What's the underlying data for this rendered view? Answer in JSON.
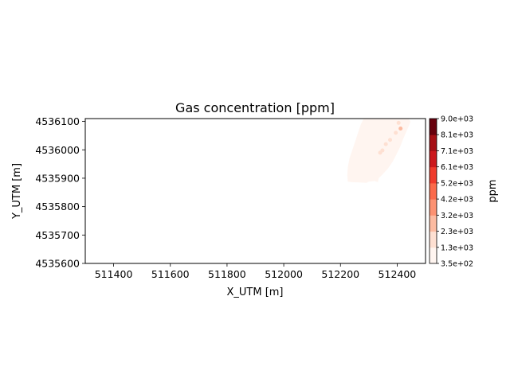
{
  "chart_data": {
    "type": "heatmap",
    "title": "Gas concentration [ppm]",
    "xlabel": "X_UTM [m]",
    "ylabel": "Y_UTM [m]",
    "xlim": [
      511300,
      512500
    ],
    "ylim": [
      4535600,
      4536110
    ],
    "x_ticks": [
      511400,
      511600,
      511800,
      512000,
      512200,
      512400
    ],
    "y_ticks": [
      4535600,
      4535700,
      4535800,
      4535900,
      4536000,
      4536100
    ],
    "grid": false,
    "colorbar": {
      "label": "ppm",
      "range": [
        350,
        9000
      ],
      "tick_labels": [
        "3.5e+02",
        "1.3e+03",
        "2.3e+03",
        "3.2e+03",
        "4.2e+03",
        "5.2e+03",
        "6.1e+03",
        "7.1e+03",
        "8.1e+03",
        "9.0e+03"
      ],
      "tick_values": [
        350,
        1300,
        2300,
        3200,
        4200,
        5200,
        6100,
        7100,
        8100,
        9000
      ],
      "colors": [
        "#fff5f0",
        "#fee0d2",
        "#fcbba1",
        "#fc9272",
        "#fb6a4a",
        "#ef3b2c",
        "#cb181d",
        "#a50f15",
        "#67000d"
      ]
    },
    "plume_outline": [
      [
        512226,
        4535888
      ],
      [
        512240,
        4535886
      ],
      [
        512268,
        4535885
      ],
      [
        512292,
        4535884
      ],
      [
        512300,
        4535888
      ],
      [
        512320,
        4535890
      ],
      [
        512332,
        4535886
      ],
      [
        512335,
        4535900
      ],
      [
        512350,
        4535915
      ],
      [
        512368,
        4535935
      ],
      [
        512384,
        4535958
      ],
      [
        512398,
        4535985
      ],
      [
        512410,
        4536010
      ],
      [
        512422,
        4536040
      ],
      [
        512434,
        4536068
      ],
      [
        512443,
        4536088
      ],
      [
        512447,
        4536100
      ],
      [
        512440,
        4536110
      ],
      [
        512390,
        4536110
      ],
      [
        512350,
        4536110
      ],
      [
        512300,
        4536110
      ],
      [
        512282,
        4536110
      ],
      [
        512272,
        4536090
      ],
      [
        512262,
        4536060
      ],
      [
        512252,
        4536030
      ],
      [
        512242,
        4536000
      ],
      [
        512232,
        4535970
      ],
      [
        512226,
        4535940
      ],
      [
        512224,
        4535910
      ]
    ],
    "plume_value": 800,
    "hotspots": [
      {
        "x": 512360,
        "y": 4536020,
        "value": 1900
      },
      {
        "x": 512348,
        "y": 4535998,
        "value": 1600
      },
      {
        "x": 512395,
        "y": 4536060,
        "value": 2100
      },
      {
        "x": 512412,
        "y": 4536075,
        "value": 2800
      },
      {
        "x": 512405,
        "y": 4536095,
        "value": 1800
      },
      {
        "x": 512375,
        "y": 4536035,
        "value": 1500
      },
      {
        "x": 512340,
        "y": 4535990,
        "value": 1400
      }
    ]
  }
}
